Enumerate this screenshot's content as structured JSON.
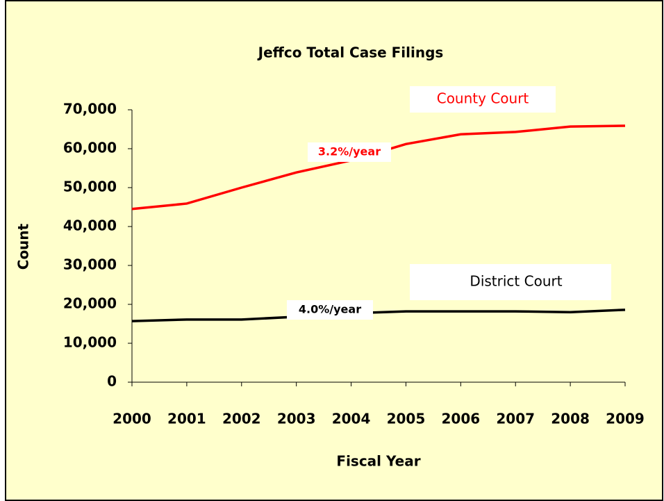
{
  "chart_data": {
    "type": "line",
    "title": "Jeffco Total Case Filings",
    "x_label": "Fiscal Year",
    "y_label": "Count",
    "categories": [
      "2000",
      "2001",
      "2002",
      "2003",
      "2004",
      "2005",
      "2006",
      "2007",
      "2008",
      "2009"
    ],
    "series": [
      {
        "name": "County Court",
        "color": "#ff0000",
        "values": [
          44500,
          45900,
          50000,
          53900,
          57000,
          61200,
          63700,
          64300,
          65700,
          65900
        ]
      },
      {
        "name": "District Court",
        "color": "#000000",
        "values": [
          15700,
          16100,
          16100,
          16800,
          17700,
          18200,
          18200,
          18200,
          18000,
          18600
        ]
      }
    ],
    "annotations": [
      {
        "text": "3.2%/year",
        "color": "#ff0000"
      },
      {
        "text": "4.0%/year",
        "color": "#000000"
      }
    ],
    "ylim": [
      0,
      70000
    ],
    "yticks": [
      0,
      {
        "value": 10000,
        "label": "10,000"
      },
      {
        "value": 20000,
        "label": "20,000"
      },
      {
        "value": 30000,
        "label": "30,000"
      },
      {
        "value": 40000,
        "label": "40,000"
      },
      {
        "value": 50000,
        "label": "50,000"
      },
      {
        "value": 60000,
        "label": "60,000"
      },
      {
        "value": 70000,
        "label": "70,000"
      }
    ],
    "grid": false
  }
}
